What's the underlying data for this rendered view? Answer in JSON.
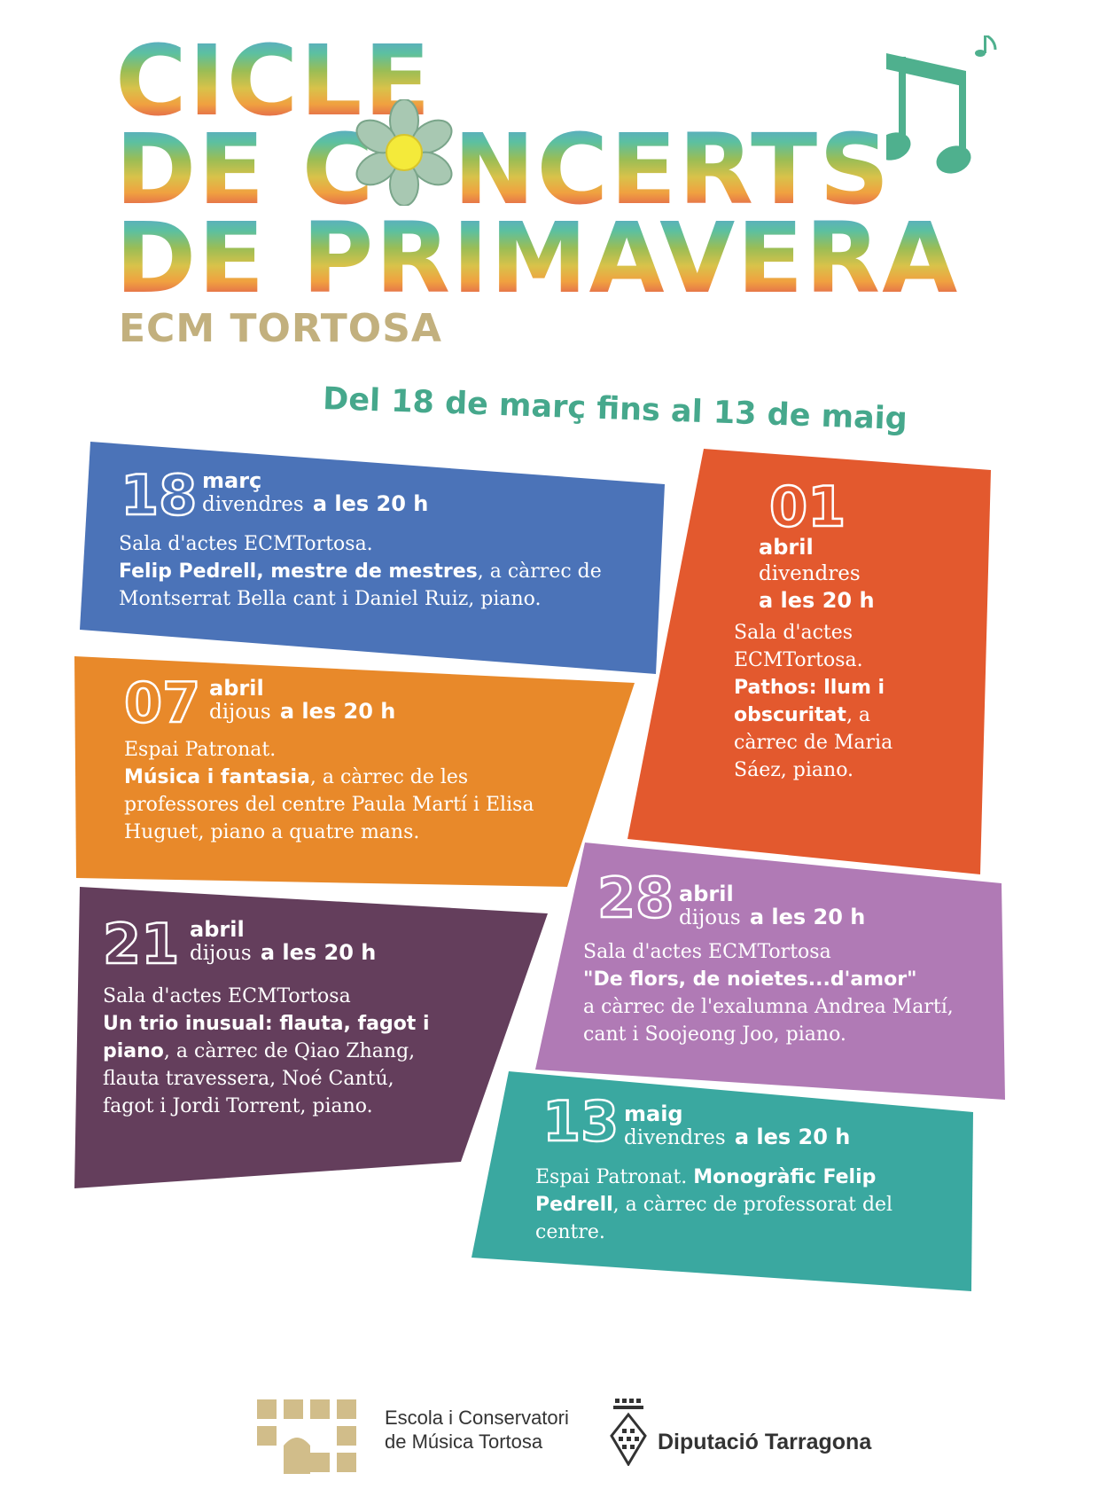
{
  "header": {
    "title_line1": "CICLE",
    "title_line2_a": "DE C",
    "title_line2_b": "NCERTS",
    "title_line3": "DE PRIMAVERA",
    "subtitle": "ECM TORTOSA",
    "date_range": "Del 18 de març fins al 13 de maig"
  },
  "events": [
    {
      "day": "18",
      "month": "març",
      "weekday": "divendres",
      "time": "a les 20 h",
      "venue": "Sala d'actes ECMTortosa.",
      "title": "Felip Pedrell, mestre de mestres",
      "rest": ", a càrrec de  Montserrat Bella cant i Daniel Ruiz, piano.",
      "color": "#4b73b8"
    },
    {
      "day": "01",
      "month": "abril",
      "weekday": "divendres",
      "time": "a les 20 h",
      "venue": "Sala d'actes ECMTortosa.",
      "title": "Pathos: llum i obscuritat",
      "rest": ", a càrrec de  Maria Sáez, piano.",
      "color": "#e3592e"
    },
    {
      "day": "07",
      "month": "abril",
      "weekday": "dijous",
      "time": "a les 20 h",
      "venue": "Espai Patronat.",
      "title": "Música i fantasia",
      "rest": ", a càrrec de les professores del centre Paula Martí i Elisa Huguet, piano a quatre mans.",
      "color": "#e8892a"
    },
    {
      "day": "21",
      "month": "abril",
      "weekday": "dijous",
      "time": "a les 20 h",
      "venue": "Sala d'actes ECMTortosa",
      "title": "Un trio inusual: flauta, fagot i piano",
      "rest": ", a càrrec de Qiao Zhang, flauta travessera, Noé Cantú, fagot i Jordi Torrent, piano.",
      "color": "#643e5c"
    },
    {
      "day": "28",
      "month": "abril",
      "weekday": "dijous",
      "time": "a les 20 h",
      "venue": "Sala d'actes ECMTortosa",
      "title": "\"De flors, de noietes...d'amor\"",
      "rest": "a càrrec de l'exalumna Andrea Martí, cant i Soojeong Joo, piano.",
      "color": "#b07ab5"
    },
    {
      "day": "13",
      "month": "maig",
      "weekday": "divendres",
      "time": "a les 20 h",
      "venue": "Espai Patronat.",
      "title": "Monogràfic Felip Pedrell",
      "rest": ", a càrrec de professorat del centre.",
      "color": "#3aa8a0"
    }
  ],
  "footer": {
    "school_line1": "Escola i Conservatori",
    "school_line2": "de Música Tortosa",
    "diputacio": "Diputació Tarragona"
  },
  "colors": {
    "subtitle": "#c2b07e",
    "date_range": "#46a88c",
    "logo_gold": "#d1bd8a"
  },
  "icons": [
    "flower-icon",
    "music-notes-icon",
    "school-logo-icon",
    "diputacio-shield-icon"
  ]
}
